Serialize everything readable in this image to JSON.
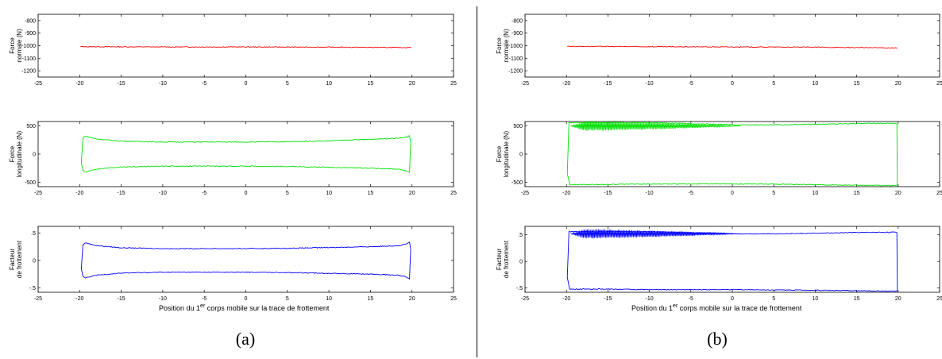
{
  "captions": [
    "(a)",
    "(b)"
  ],
  "xlabel": {
    "prefix": "Position du 1",
    "superscript": "er",
    "suffix": " corps mobile sur la trace de frottement"
  },
  "colors": {
    "normal": "#ff0000",
    "longitudinal": "#00e000",
    "friction": "#0000ff"
  },
  "chart_data": [
    {
      "panel": "a",
      "row": 1,
      "type": "line",
      "ylabel": [
        "Force",
        "normale (N)"
      ],
      "xlim": [
        -25,
        25
      ],
      "ylim": [
        -1250,
        -750
      ],
      "xticks": [
        -25,
        -20,
        -15,
        -10,
        -5,
        0,
        5,
        10,
        15,
        20,
        25
      ],
      "yticks": [
        -800,
        -900,
        -1000,
        -1100,
        -1200
      ],
      "series": [
        {
          "color": "normal",
          "x": [
            -19.9,
            -10,
            0,
            10,
            19.9
          ],
          "y": [
            -1008,
            -1010,
            -1010,
            -1012,
            -1015
          ]
        }
      ]
    },
    {
      "panel": "a",
      "row": 2,
      "type": "line",
      "ylabel": [
        "Force",
        "longitudinale (N)"
      ],
      "xlim": [
        -25,
        25
      ],
      "ylim": [
        -580,
        580
      ],
      "xticks": [
        -25,
        -20,
        -15,
        -10,
        -5,
        0,
        5,
        10,
        15,
        20,
        25
      ],
      "yticks": [
        500,
        0,
        -500
      ],
      "series": [
        {
          "color": "longitudinal",
          "x": [
            -19.8,
            -19.6,
            -19.3,
            -18,
            -15,
            -10,
            -5,
            0,
            5,
            10,
            15,
            18.5,
            19.3,
            19.7,
            19.85
          ],
          "y": [
            -150,
            290,
            320,
            270,
            230,
            215,
            215,
            215,
            220,
            235,
            265,
            285,
            300,
            330,
            200
          ]
        },
        {
          "color": "longitudinal",
          "x": [
            -19.8,
            -19.6,
            -19.3,
            -18,
            -15,
            -10,
            -5,
            0,
            5,
            10,
            15,
            18.5,
            19.3,
            19.7,
            19.85
          ],
          "y": [
            -150,
            -290,
            -320,
            -270,
            -230,
            -215,
            -215,
            -215,
            -220,
            -235,
            -250,
            -270,
            -300,
            -330,
            200
          ]
        }
      ]
    },
    {
      "panel": "a",
      "row": 3,
      "type": "line",
      "ylabel": [
        "Facteur",
        "de frottement"
      ],
      "xlim": [
        -25,
        25
      ],
      "ylim": [
        -0.58,
        0.62
      ],
      "xticks": [
        -25,
        -20,
        -15,
        -10,
        -5,
        0,
        5,
        10,
        15,
        20,
        25
      ],
      "yticks": [
        0.5,
        0,
        -0.5
      ],
      "series": [
        {
          "color": "friction",
          "x": [
            -19.8,
            -19.6,
            -19.3,
            -18,
            -15,
            -10,
            -5,
            0,
            5,
            10,
            15,
            18.5,
            19.3,
            19.7,
            19.85
          ],
          "y": [
            -0.15,
            0.29,
            0.32,
            0.27,
            0.23,
            0.215,
            0.215,
            0.215,
            0.22,
            0.235,
            0.25,
            0.27,
            0.3,
            0.33,
            0.2
          ]
        },
        {
          "color": "friction",
          "x": [
            -19.8,
            -19.6,
            -19.3,
            -18,
            -15,
            -10,
            -5,
            0,
            5,
            10,
            15,
            18.5,
            19.3,
            19.7,
            19.85
          ],
          "y": [
            -0.15,
            -0.29,
            -0.32,
            -0.27,
            -0.23,
            -0.215,
            -0.215,
            -0.215,
            -0.22,
            -0.235,
            -0.25,
            -0.27,
            -0.3,
            -0.33,
            0.2
          ]
        }
      ]
    },
    {
      "panel": "b",
      "row": 1,
      "type": "line",
      "ylabel": [
        "Force",
        "normale (N)"
      ],
      "xlim": [
        -25,
        25
      ],
      "ylim": [
        -1250,
        -750
      ],
      "xticks": [
        -25,
        -20,
        -15,
        -10,
        -5,
        0,
        5,
        10,
        15,
        20,
        25
      ],
      "yticks": [
        -800,
        -900,
        -1000,
        -1100,
        -1200
      ],
      "series": [
        {
          "color": "normal",
          "x": [
            -19.9,
            -10,
            0,
            10,
            19.9
          ],
          "y": [
            -1005,
            -1008,
            -1010,
            -1012,
            -1018
          ]
        }
      ]
    },
    {
      "panel": "b",
      "row": 2,
      "type": "line",
      "ylabel": [
        "Force",
        "longitudinale (N)"
      ],
      "xlim": [
        -25,
        25
      ],
      "ylim": [
        -580,
        580
      ],
      "xticks": [
        -25,
        -20,
        -15,
        -10,
        -5,
        0,
        5,
        10,
        15,
        20,
        25
      ],
      "yticks": [
        500,
        0,
        -500
      ],
      "oscillation": {
        "x": [
          -19.5,
          1.0
        ],
        "center": 500,
        "amplitude": 90
      },
      "series": [
        {
          "color": "longitudinal",
          "x": [
            -19.9,
            -19.7,
            -19.5,
            -10,
            1,
            5,
            10,
            15,
            19.6,
            19.85,
            19.9
          ],
          "y": [
            -350,
            555,
            560,
            560,
            520,
            520,
            530,
            545,
            550,
            540,
            -560
          ]
        },
        {
          "color": "longitudinal",
          "x": [
            -19.9,
            -19.6,
            -15,
            -10,
            -5,
            0,
            5,
            10,
            15,
            19.6,
            19.85
          ],
          "y": [
            -350,
            -545,
            -540,
            -535,
            -530,
            -530,
            -535,
            -545,
            -555,
            -560,
            -560
          ]
        }
      ]
    },
    {
      "panel": "b",
      "row": 3,
      "type": "line",
      "ylabel": [
        "Facteur",
        "de frottement"
      ],
      "xlim": [
        -25,
        25
      ],
      "ylim": [
        -0.58,
        0.66
      ],
      "xticks": [
        -25,
        -20,
        -15,
        -10,
        -5,
        0,
        5,
        10,
        15,
        20,
        25
      ],
      "yticks": [
        0.5,
        0,
        -0.5
      ],
      "oscillation": {
        "x": [
          -19.5,
          1.0
        ],
        "center": 0.52,
        "amplitude": 0.09
      },
      "series": [
        {
          "color": "friction",
          "x": [
            -19.9,
            -19.7,
            -19.5,
            -10,
            1,
            5,
            10,
            15,
            19.6,
            19.85,
            19.9
          ],
          "y": [
            -0.3,
            0.555,
            0.56,
            0.56,
            0.52,
            0.52,
            0.53,
            0.545,
            0.55,
            0.54,
            -0.56
          ]
        },
        {
          "color": "friction",
          "x": [
            -19.9,
            -19.6,
            -15,
            -10,
            -5,
            0,
            5,
            10,
            15,
            19.6,
            19.85
          ],
          "y": [
            -0.3,
            -0.52,
            -0.52,
            -0.53,
            -0.53,
            -0.53,
            -0.535,
            -0.54,
            -0.55,
            -0.56,
            -0.56
          ]
        }
      ]
    }
  ]
}
